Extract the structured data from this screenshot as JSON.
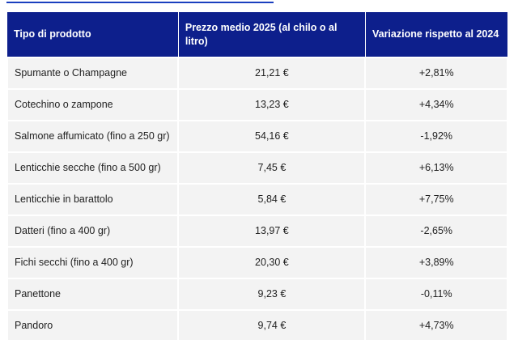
{
  "table": {
    "header": [
      "Tipo di prodotto",
      "Prezzo medio 2025 (al chilo o al litro)",
      "Variazione rispetto al 2024"
    ],
    "rows": [
      [
        "Spumante o Champagne",
        "21,21 €",
        "+2,81%"
      ],
      [
        "Cotechino o zampone",
        "13,23 €",
        "+4,34%"
      ],
      [
        "Salmone affumicato (fino a 250 gr)",
        "54,16 €",
        "-1,92%"
      ],
      [
        "Lenticchie secche (fino a 500 gr)",
        "7,45 €",
        "+6,13%"
      ],
      [
        "Lenticchie in barattolo",
        "5,84 €",
        "+7,75%"
      ],
      [
        "Datteri (fino a 400 gr)",
        "13,97 €",
        "-2,65%"
      ],
      [
        "Fichi secchi (fino a 400 gr)",
        "20,30 €",
        "+3,89%"
      ],
      [
        "Panettone",
        "9,23 €",
        "-0,11%"
      ],
      [
        "Pandoro",
        "9,74 €",
        "+4,73%"
      ]
    ]
  }
}
